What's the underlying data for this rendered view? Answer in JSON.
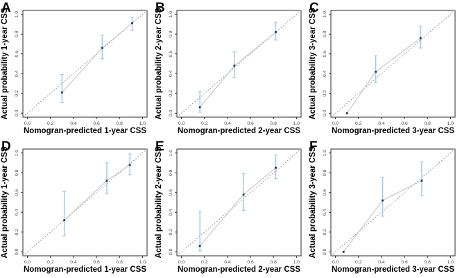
{
  "figure": {
    "description": "Calibration curves of nomogram, six panels A-F",
    "colors": {
      "background": "#ffffff",
      "axis_box": "#2b2b2b",
      "tick_label": "#4a4a4a",
      "axis_title": "#000000",
      "panel_letter": "#000000",
      "reference_line": "#8a8a8a",
      "calibration_line": "#ccc3c3",
      "error_bar": "#a7c6df",
      "point": "#23384e"
    }
  },
  "chart_data": [
    {
      "panel": "A",
      "type": "scatter",
      "xlabel": "Nomogran-predicted 1-year CSS",
      "ylabel": "Actual probability 1-year CSS",
      "xlim": [
        0,
        1
      ],
      "ylim": [
        0,
        1
      ],
      "xticks": [
        0.0,
        0.2,
        0.4,
        0.6,
        0.8,
        1.0
      ],
      "yticks": [
        0.0,
        0.2,
        0.4,
        0.6,
        0.8,
        1.0
      ],
      "reference_line": {
        "type": "diagonal",
        "style": "dotted"
      },
      "points": [
        {
          "x": 0.3,
          "y": 0.21,
          "lo": 0.11,
          "hi": 0.39
        },
        {
          "x": 0.65,
          "y": 0.66,
          "lo": 0.55,
          "hi": 0.79
        },
        {
          "x": 0.91,
          "y": 0.91,
          "lo": 0.84,
          "hi": 0.97
        }
      ]
    },
    {
      "panel": "B",
      "type": "scatter",
      "xlabel": "Nomogran-predicted 2-year CSS",
      "ylabel": "Actual probability 2-year CSS",
      "xlim": [
        0,
        1
      ],
      "ylim": [
        0,
        1
      ],
      "xticks": [
        0.0,
        0.2,
        0.4,
        0.6,
        0.8,
        1.0
      ],
      "yticks": [
        0.0,
        0.2,
        0.4,
        0.6,
        0.8,
        1.0
      ],
      "reference_line": {
        "type": "diagonal",
        "style": "dotted"
      },
      "points": [
        {
          "x": 0.16,
          "y": 0.06,
          "lo": 0.01,
          "hi": 0.22
        },
        {
          "x": 0.46,
          "y": 0.48,
          "lo": 0.36,
          "hi": 0.62
        },
        {
          "x": 0.82,
          "y": 0.82,
          "lo": 0.74,
          "hi": 0.92
        }
      ]
    },
    {
      "panel": "C",
      "type": "scatter",
      "xlabel": "Nomogran-predicted 3-year CSS",
      "ylabel": "Actual probability 3-year CSS",
      "xlim": [
        0,
        1
      ],
      "ylim": [
        0,
        1
      ],
      "xticks": [
        0.0,
        0.2,
        0.4,
        0.6,
        0.8,
        1.0
      ],
      "yticks": [
        0.0,
        0.2,
        0.4,
        0.6,
        0.8,
        1.0
      ],
      "reference_line": {
        "type": "diagonal",
        "style": "dotted"
      },
      "points": [
        {
          "x": 0.1,
          "y": 0.0,
          "lo": null,
          "hi": null
        },
        {
          "x": 0.35,
          "y": 0.42,
          "lo": 0.31,
          "hi": 0.58
        },
        {
          "x": 0.74,
          "y": 0.76,
          "lo": 0.66,
          "hi": 0.88
        }
      ]
    },
    {
      "panel": "D",
      "type": "scatter",
      "xlabel": "Nomogran-predicted 1-year CSS",
      "ylabel": "Actual probability 1-year CSS",
      "xlim": [
        0,
        1
      ],
      "ylim": [
        0,
        1
      ],
      "xticks": [
        0.0,
        0.2,
        0.4,
        0.6,
        0.8,
        1.0
      ],
      "yticks": [
        0.0,
        0.2,
        0.4,
        0.6,
        0.8,
        1.0
      ],
      "reference_line": {
        "type": "diagonal",
        "style": "dotted"
      },
      "points": [
        {
          "x": 0.32,
          "y": 0.32,
          "lo": 0.16,
          "hi": 0.61
        },
        {
          "x": 0.69,
          "y": 0.72,
          "lo": 0.59,
          "hi": 0.9
        },
        {
          "x": 0.89,
          "y": 0.88,
          "lo": 0.78,
          "hi": 0.99
        }
      ]
    },
    {
      "panel": "E",
      "type": "scatter",
      "xlabel": "Nomogran-predicted 2-year CSS",
      "ylabel": "Actual probability 2-year CSS",
      "xlim": [
        0,
        1
      ],
      "ylim": [
        0,
        1
      ],
      "xticks": [
        0.0,
        0.2,
        0.4,
        0.6,
        0.8,
        1.0
      ],
      "yticks": [
        0.0,
        0.2,
        0.4,
        0.6,
        0.8,
        1.0
      ],
      "reference_line": {
        "type": "diagonal",
        "style": "dotted"
      },
      "points": [
        {
          "x": 0.16,
          "y": 0.06,
          "lo": 0.01,
          "hi": 0.41
        },
        {
          "x": 0.54,
          "y": 0.58,
          "lo": 0.42,
          "hi": 0.79
        },
        {
          "x": 0.82,
          "y": 0.85,
          "lo": 0.74,
          "hi": 0.98
        }
      ]
    },
    {
      "panel": "F",
      "type": "scatter",
      "xlabel": "Nomogran-predicted 3-year CSS",
      "ylabel": "Actual probability 3-year CSS",
      "xlim": [
        0,
        1
      ],
      "ylim": [
        0,
        1
      ],
      "xticks": [
        0.0,
        0.2,
        0.4,
        0.6,
        0.8,
        1.0
      ],
      "yticks": [
        0.0,
        0.2,
        0.4,
        0.6,
        0.8,
        1.0
      ],
      "reference_line": {
        "type": "diagonal",
        "style": "dotted"
      },
      "points": [
        {
          "x": 0.07,
          "y": 0.0,
          "lo": null,
          "hi": null
        },
        {
          "x": 0.41,
          "y": 0.52,
          "lo": 0.36,
          "hi": 0.75
        },
        {
          "x": 0.75,
          "y": 0.72,
          "lo": 0.57,
          "hi": 0.91
        }
      ]
    }
  ]
}
